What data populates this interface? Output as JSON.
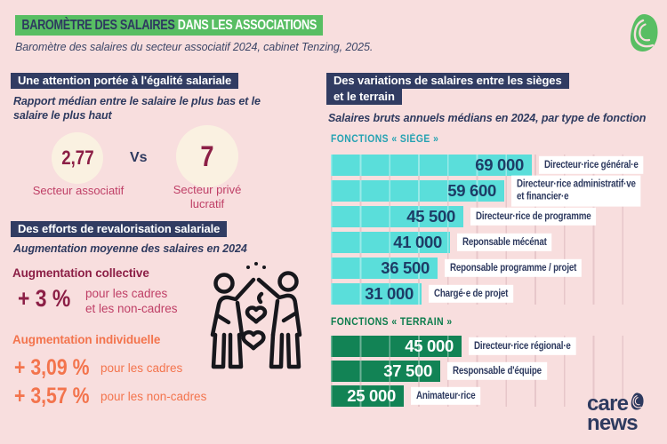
{
  "page": {
    "title_dark": "BAROMÈTRE DES SALAIRES",
    "title_light": " DANS LES ASSOCIATIONS",
    "subtitle": "Baromètre des salaires du secteur associatif 2024, cabinet Tenzing, 2025."
  },
  "colors": {
    "background": "#f8dede",
    "title_highlight_green": "#58be63",
    "navy": "#2e3a5f",
    "burgundy": "#8c1f46",
    "raspberry": "#bf3f66",
    "orange": "#f3744d",
    "teal_label": "#25a2b2",
    "green_label": "#0c7c4c",
    "siege_bar": "#5adeda",
    "terrain_bar": "#128355",
    "circle_cream": "#faf1e1"
  },
  "equality_section": {
    "header": "Une attention portée à l'égalité salariale",
    "subtitle": "Rapport médian entre le salaire le plus bas et le salaire le plus haut",
    "left_value": "2,77",
    "left_label": "Secteur associatif",
    "vs": "Vs",
    "right_value": "7",
    "right_label": "Secteur privé\nlucratif"
  },
  "raise_section": {
    "header": "Des efforts de revalorisation salariale",
    "subtitle": "Augmentation moyenne des salaires en 2024",
    "collective": {
      "title": "Augmentation collective",
      "value": "+ 3 %",
      "caption": "pour les cadres\net les non-cadres"
    },
    "individual": {
      "title": "Augmentation individuelle",
      "rows": [
        {
          "value": "+ 3,09 %",
          "caption": "pour les cadres"
        },
        {
          "value": "+ 3,57 %",
          "caption": "pour les non-cadres"
        }
      ]
    }
  },
  "variations_section": {
    "header": "Des variations de salaires entre les sièges\net le terrain",
    "subtitle": "Salaires bruts annuels médians en 2024, par type de fonction"
  },
  "chart_data": [
    {
      "type": "bar",
      "orientation": "horizontal",
      "group_title": "FONCTIONS « SIÈGE »",
      "theme": "siege",
      "bar_color": "#5adeda",
      "value_color": "#1d3c66",
      "axis": {
        "min": 0,
        "max": 100000,
        "gridline_interval": 10000,
        "tick_labels_shown": false
      },
      "bars": [
        {
          "label": "Directeur·rice général·e",
          "value": 69000,
          "value_label": "69 000"
        },
        {
          "label": "Directeur·rice administratif·ve\net financier·e",
          "value": 59600,
          "value_label": "59 600"
        },
        {
          "label": "Directeur·rice de programme",
          "value": 45500,
          "value_label": "45 500"
        },
        {
          "label": "Reponsable mécénat",
          "value": 41000,
          "value_label": "41 000"
        },
        {
          "label": "Reponsable programme / projet",
          "value": 36500,
          "value_label": "36 500"
        },
        {
          "label": "Chargé·e de projet",
          "value": 31000,
          "value_label": "31 000"
        }
      ]
    },
    {
      "type": "bar",
      "orientation": "horizontal",
      "group_title": "FONCTIONS « TERRAIN »",
      "theme": "terrain",
      "bar_color": "#128355",
      "value_color": "#ffffff",
      "axis": {
        "min": 0,
        "max": 100000,
        "gridline_interval": 10000,
        "tick_labels_shown": false
      },
      "bars": [
        {
          "label": "Directeur·rice régional·e",
          "value": 45000,
          "value_label": "45 000"
        },
        {
          "label": "Responsable d'équipe",
          "value": 37500,
          "value_label": "37 500"
        },
        {
          "label": "Animateur·rice",
          "value": 25000,
          "value_label": "25 000"
        }
      ]
    }
  ],
  "footer": {
    "brand_line1": "care",
    "brand_line2": "news"
  }
}
